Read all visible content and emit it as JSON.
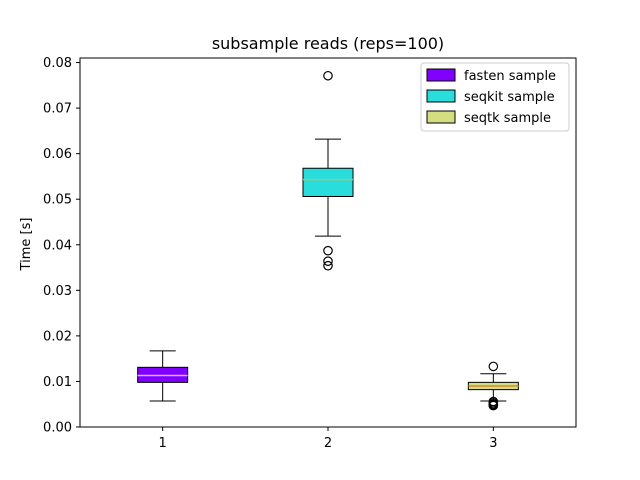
{
  "chart_data": {
    "type": "box",
    "title": "subsample reads (reps=100)",
    "xlabel": "",
    "ylabel": "Time [s]",
    "ylim": [
      0,
      0.081
    ],
    "yticks": [
      "0.00",
      "0.01",
      "0.02",
      "0.03",
      "0.04",
      "0.05",
      "0.06",
      "0.07",
      "0.08"
    ],
    "categories": [
      "1",
      "2",
      "3"
    ],
    "legend_position": "top-right",
    "series": [
      {
        "name": "fasten sample",
        "color": "#7f00ff",
        "median_color": "#d4b0ff",
        "whisker_low": 0.0057,
        "q1": 0.0098,
        "median": 0.0113,
        "q3": 0.0131,
        "whisker_high": 0.0167,
        "outliers": []
      },
      {
        "name": "seqkit sample",
        "color": "#2adddd",
        "median_color": "#a8c27a",
        "whisker_low": 0.0419,
        "q1": 0.0506,
        "median": 0.0543,
        "q3": 0.0568,
        "whisker_high": 0.0632,
        "outliers": [
          0.0771,
          0.0387,
          0.0364,
          0.0354
        ]
      },
      {
        "name": "seqtk sample",
        "color": "#d4dd80",
        "median_color": "#d08a3a",
        "whisker_low": 0.0057,
        "q1": 0.0082,
        "median": 0.009,
        "q3": 0.0098,
        "whisker_high": 0.0117,
        "outliers": [
          0.0133,
          0.0056,
          0.0053,
          0.005,
          0.0048,
          0.0047
        ]
      }
    ]
  }
}
